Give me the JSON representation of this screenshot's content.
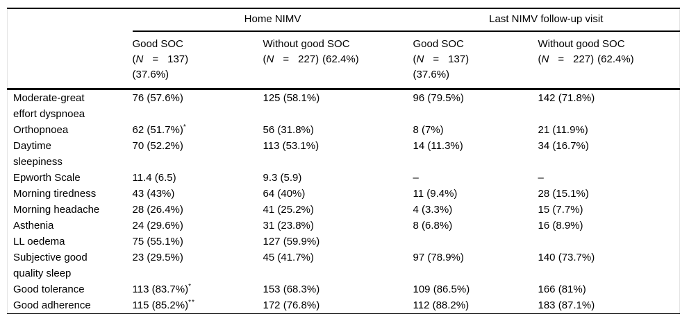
{
  "table": {
    "groups": [
      "Home NIMV",
      "Last NIMV follow-up visit"
    ],
    "col_headers": [
      {
        "title": "Good SOC",
        "n_open": "(",
        "n": "N",
        "eq": "=",
        "n_rest": "137)",
        "pct": "(37.6%)"
      },
      {
        "title": "Without good SOC",
        "n_open": "(",
        "n": "N",
        "eq": "=",
        "n_rest": "227)",
        "pct": "(62.4%)"
      },
      {
        "title": "Good SOC",
        "n_open": "(",
        "n": "N",
        "eq": "=",
        "n_rest": "137)",
        "pct": "(37.6%)"
      },
      {
        "title": "Without good SOC",
        "n_open": "(",
        "n": "N",
        "eq": "=",
        "n_rest": "227)",
        "pct": "(62.4%)"
      }
    ],
    "rows": [
      {
        "label": "Moderate-great\neffort dyspnoea",
        "cells": [
          {
            "text": "76 (57.6%)",
            "sup": ""
          },
          {
            "text": "125 (58.1%)",
            "sup": ""
          },
          {
            "text": "96 (79.5%)",
            "sup": ""
          },
          {
            "text": "142 (71.8%)",
            "sup": ""
          }
        ]
      },
      {
        "label": "Orthopnoea",
        "cells": [
          {
            "text": "62 (51.7%)",
            "sup": "*"
          },
          {
            "text": "56 (31.8%)",
            "sup": ""
          },
          {
            "text": "8 (7%)",
            "sup": ""
          },
          {
            "text": "21 (11.9%)",
            "sup": ""
          }
        ]
      },
      {
        "label": "Daytime\nsleepiness",
        "cells": [
          {
            "text": "70 (52.2%)",
            "sup": ""
          },
          {
            "text": "113 (53.1%)",
            "sup": ""
          },
          {
            "text": "14 (11.3%)",
            "sup": ""
          },
          {
            "text": "34 (16.7%)",
            "sup": ""
          }
        ]
      },
      {
        "label": "Epworth Scale",
        "cells": [
          {
            "text": "11.4 (6.5)",
            "sup": ""
          },
          {
            "text": "9.3 (5.9)",
            "sup": ""
          },
          {
            "text": "–",
            "sup": ""
          },
          {
            "text": "–",
            "sup": ""
          }
        ]
      },
      {
        "label": "Morning tiredness",
        "cells": [
          {
            "text": "43 (43%)",
            "sup": ""
          },
          {
            "text": "64 (40%)",
            "sup": ""
          },
          {
            "text": "11 (9.4%)",
            "sup": ""
          },
          {
            "text": "28 (15.1%)",
            "sup": ""
          }
        ]
      },
      {
        "label": "Morning headache",
        "cells": [
          {
            "text": "28 (26.4%)",
            "sup": ""
          },
          {
            "text": "41 (25.2%)",
            "sup": ""
          },
          {
            "text": "4 (3.3%)",
            "sup": ""
          },
          {
            "text": "15 (7.7%)",
            "sup": ""
          }
        ]
      },
      {
        "label": "Asthenia",
        "cells": [
          {
            "text": "24 (29.6%)",
            "sup": ""
          },
          {
            "text": "31 (23.8%)",
            "sup": ""
          },
          {
            "text": "8 (6.8%)",
            "sup": ""
          },
          {
            "text": "16 (8.9%)",
            "sup": ""
          }
        ]
      },
      {
        "label": "LL oedema",
        "cells": [
          {
            "text": "75 (55.1%)",
            "sup": ""
          },
          {
            "text": "127 (59.9%)",
            "sup": ""
          },
          {
            "text": "",
            "sup": ""
          },
          {
            "text": "",
            "sup": ""
          }
        ]
      },
      {
        "label": "Subjective good\nquality sleep",
        "cells": [
          {
            "text": "23 (29.5%)",
            "sup": ""
          },
          {
            "text": "45 (41.7%)",
            "sup": ""
          },
          {
            "text": "97 (78.9%)",
            "sup": ""
          },
          {
            "text": "140 (73.7%)",
            "sup": ""
          }
        ]
      },
      {
        "label": "Good tolerance",
        "cells": [
          {
            "text": "113 (83.7%)",
            "sup": "*"
          },
          {
            "text": "153 (68.3%)",
            "sup": ""
          },
          {
            "text": "109 (86.5%)",
            "sup": ""
          },
          {
            "text": "166 (81%)",
            "sup": ""
          }
        ]
      },
      {
        "label": "Good adherence",
        "cells": [
          {
            "text": "115 (85.2%)",
            "sup": "**"
          },
          {
            "text": "172 (76.8%)",
            "sup": ""
          },
          {
            "text": "112 (88.2%)",
            "sup": ""
          },
          {
            "text": "183 (87.1%)",
            "sup": ""
          }
        ]
      }
    ]
  }
}
